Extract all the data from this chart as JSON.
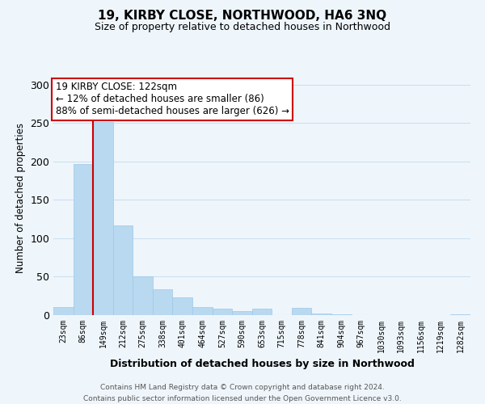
{
  "title": "19, KIRBY CLOSE, NORTHWOOD, HA6 3NQ",
  "subtitle": "Size of property relative to detached houses in Northwood",
  "xlabel": "Distribution of detached houses by size in Northwood",
  "ylabel": "Number of detached properties",
  "bar_labels": [
    "23sqm",
    "86sqm",
    "149sqm",
    "212sqm",
    "275sqm",
    "338sqm",
    "401sqm",
    "464sqm",
    "527sqm",
    "590sqm",
    "653sqm",
    "715sqm",
    "778sqm",
    "841sqm",
    "904sqm",
    "967sqm",
    "1030sqm",
    "1093sqm",
    "1156sqm",
    "1219sqm",
    "1282sqm"
  ],
  "bar_values": [
    11,
    197,
    251,
    117,
    50,
    34,
    23,
    10,
    8,
    5,
    8,
    0,
    9,
    2,
    1,
    0,
    0,
    0,
    0,
    0,
    1
  ],
  "bar_color": "#b8d9f0",
  "bar_edge_color": "#9fc8e8",
  "highlight_line_color": "#cc0000",
  "annotation_line1": "19 KIRBY CLOSE: 122sqm",
  "annotation_line2": "← 12% of detached houses are smaller (86)",
  "annotation_line3": "88% of semi-detached houses are larger (626) →",
  "annotation_box_color": "#ffffff",
  "annotation_box_edge_color": "#cc0000",
  "ylim": [
    0,
    305
  ],
  "yticks": [
    0,
    50,
    100,
    150,
    200,
    250,
    300
  ],
  "footer_line1": "Contains HM Land Registry data © Crown copyright and database right 2024.",
  "footer_line2": "Contains public sector information licensed under the Open Government Licence v3.0.",
  "grid_color": "#cce0ef",
  "background_color": "#eef6fc"
}
